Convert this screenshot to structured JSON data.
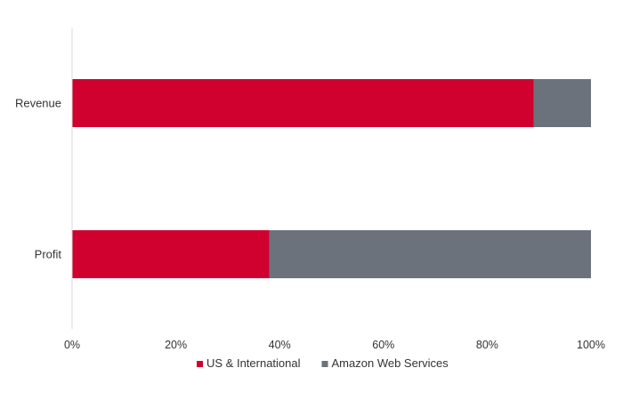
{
  "chart_data": {
    "type": "bar",
    "orientation": "horizontal",
    "stacked": true,
    "normalized": "percent",
    "categories": [
      "Revenue",
      "Profit"
    ],
    "series": [
      {
        "name": "US & International",
        "color": "#d0002f",
        "values": [
          89,
          38
        ]
      },
      {
        "name": "Amazon Web Services",
        "color": "#6b727b",
        "values": [
          11,
          62
        ]
      }
    ],
    "xlim": [
      0,
      100
    ],
    "x_ticks": [
      0,
      20,
      40,
      60,
      80,
      100
    ],
    "x_tick_labels": [
      "0%",
      "20%",
      "40%",
      "60%",
      "80%",
      "100%"
    ],
    "title": "",
    "xlabel": "",
    "ylabel": "",
    "grid": false,
    "legend_position": "bottom"
  }
}
